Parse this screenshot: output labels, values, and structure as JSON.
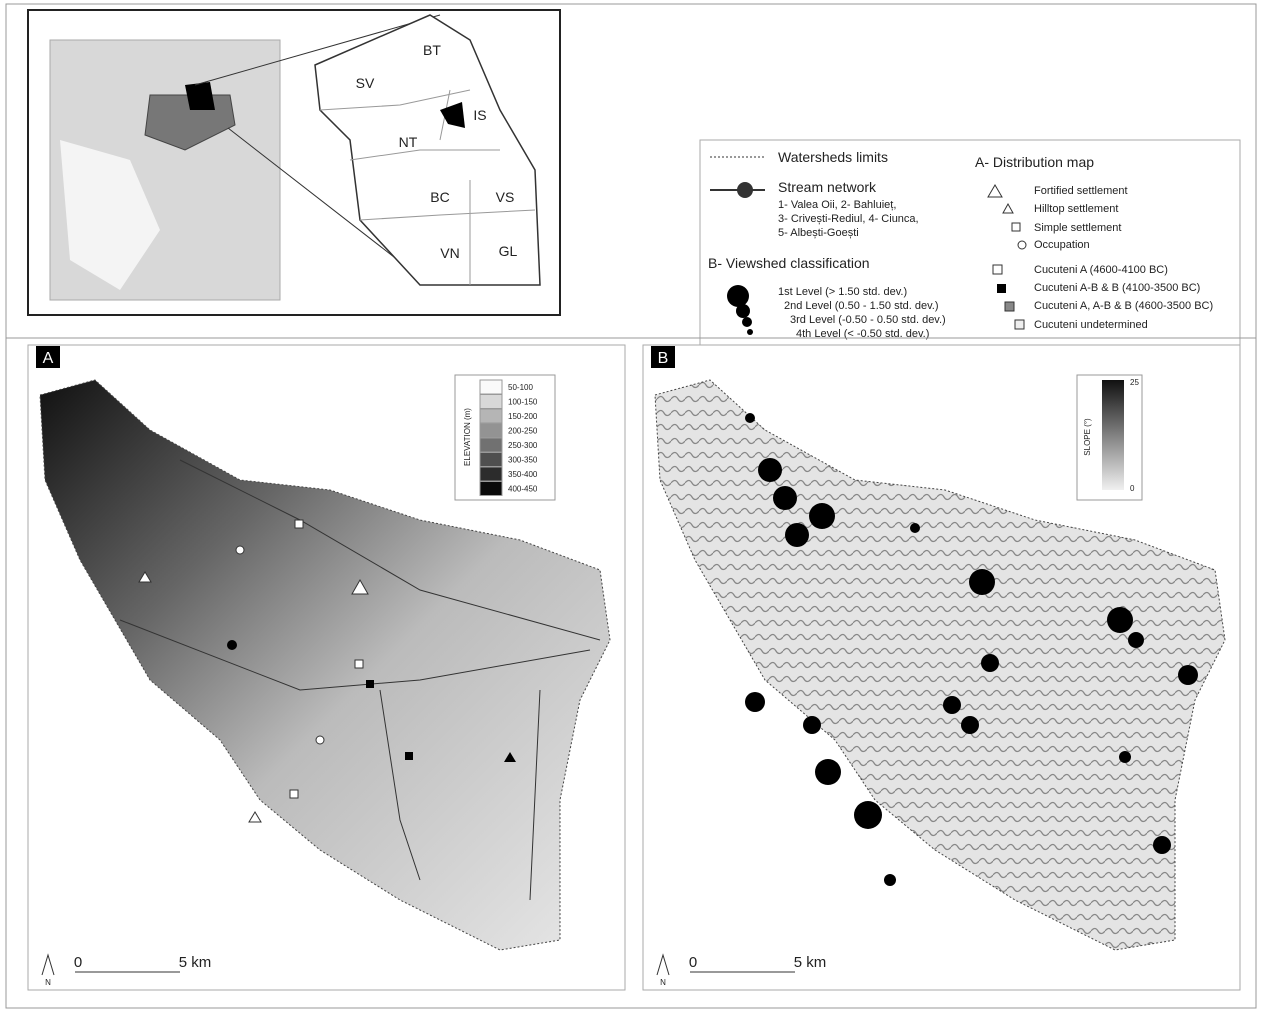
{
  "inset": {
    "counties": [
      "BT",
      "SV",
      "IS",
      "NT",
      "BC",
      "VS",
      "VN",
      "GL"
    ]
  },
  "legend": {
    "watersheds": "Watersheds limits",
    "stream_network": "Stream network",
    "stream_names": [
      "1- Valea Oii, 2- Bahluieț,",
      "3- Crivești-Rediul, 4- Ciunca,",
      "5- Albești-Goești"
    ],
    "viewshed_title": "B- Viewshed classification",
    "viewshed_levels": [
      "1st Level (> 1.50 std. dev.)",
      "2nd Level (0.50 - 1.50 std. dev.)",
      "3rd Level (-0.50 - 0.50 std. dev.)",
      "4th Level (< -0.50 std. dev.)"
    ],
    "distribution_title": "A- Distribution map",
    "site_types": [
      "Fortified settlement",
      "Hilltop settlement",
      "Simple settlement",
      "Occupation"
    ],
    "phases": [
      "Cucuteni A (4600-4100 BC)",
      "Cucuteni A-B & B (4100-3500 BC)",
      "Cucuteni A, A-B & B (4600-3500 BC)",
      "Cucuteni undetermined"
    ]
  },
  "panel_a": {
    "label": "A",
    "elevation_title": "ELEVATION (m)",
    "elevation_classes": [
      "50-100",
      "100-150",
      "150-200",
      "200-250",
      "250-300",
      "300-350",
      "350-400",
      "400-450"
    ],
    "scale_start": "0",
    "scale_end": "5 km",
    "north": "N"
  },
  "panel_b": {
    "label": "B",
    "slope_title": "SLOPE (°)",
    "slope_max": "25",
    "slope_min": "0",
    "scale_start": "0",
    "scale_end": "5 km",
    "north": "N"
  }
}
